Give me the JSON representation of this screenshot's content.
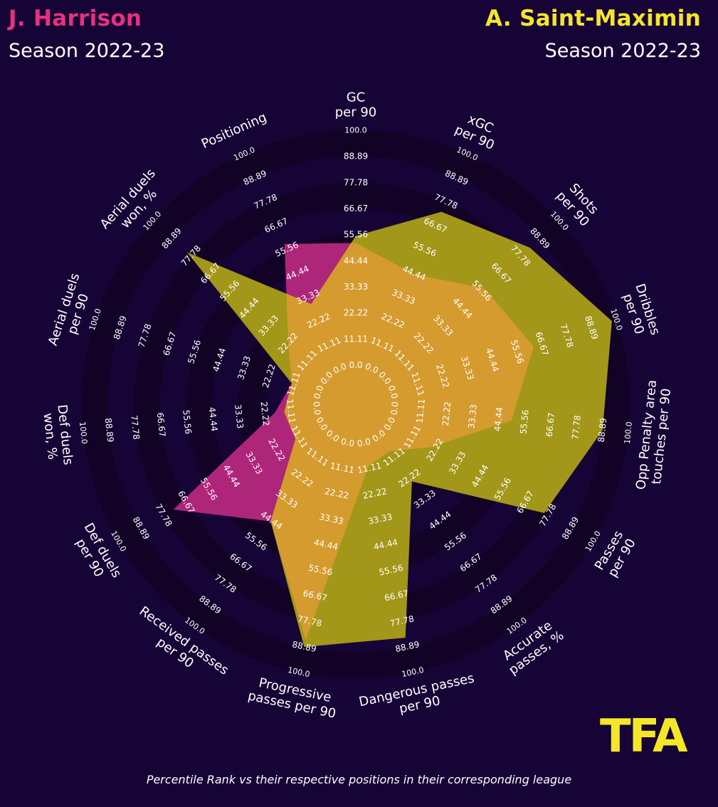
{
  "players": {
    "left": {
      "name": "J. Harrison",
      "season": "Season 2022-23",
      "color": "#e8307f"
    },
    "right": {
      "name": "A. Saint-Maximin",
      "season": "Season 2022-23",
      "color": "#f3e62a"
    }
  },
  "logo": {
    "text": "TFA",
    "color": "#f5e628"
  },
  "footnote": "Percentile Rank vs their respective positions in their corresponding league",
  "colors": {
    "background": "#170436",
    "ring_dark": "#120225",
    "harrison_fill": "#ae267a",
    "saint_maximin_fill": "#a29719",
    "overlap_fill": "#d59b2f",
    "text": "#ffffff"
  },
  "chart_data": {
    "type": "radar",
    "scale": {
      "min": 0,
      "max": 100
    },
    "ring_labels": [
      "0.0",
      "11.11",
      "22.22",
      "33.33",
      "44.44",
      "55.56",
      "66.67",
      "77.78",
      "88.89",
      "100.0"
    ],
    "categories": [
      "GC\nper 90",
      "xGC\nper 90",
      "Shots\nper 90",
      "Dribbles\nper 90",
      "Opp Penalty area\ntouches per 90",
      "Passes\nper 90",
      "Accurate\npasses, %",
      "Dangerous passes\nper 90",
      "Progressive\npasses per 90",
      "Received passes\nper 90",
      "Def duels\nper 90",
      "Def duels\nwon, %",
      "Aerial duels\nper 90",
      "Aerial duels\nwon, %",
      "Positioning"
    ],
    "series": [
      {
        "name": "J. Harrison",
        "values": [
          52,
          44,
          57,
          63,
          50,
          20,
          8,
          10,
          86,
          45,
          73,
          18,
          12,
          22,
          58
        ]
      },
      {
        "name": "A. Saint-Maximin",
        "values": [
          55,
          73,
          83,
          98,
          89,
          76,
          24,
          85,
          89,
          45,
          13,
          14,
          12,
          80,
          30
        ]
      }
    ]
  }
}
